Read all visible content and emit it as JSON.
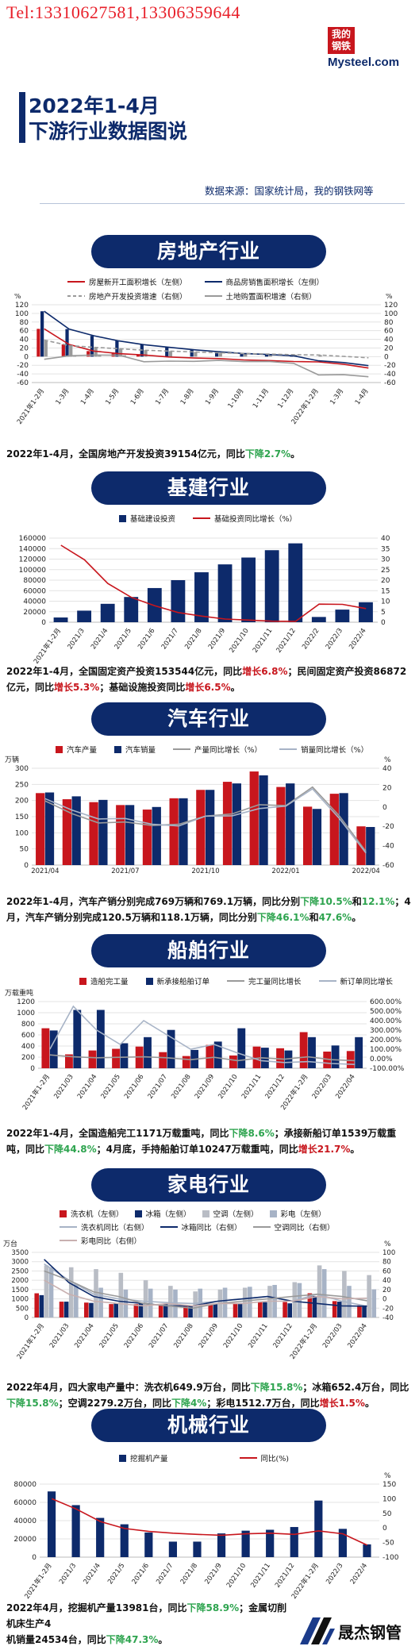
{
  "header": {
    "phone": "Tel:13310627581,13306359644",
    "logo_top": "我的",
    "logo_mid": "钢铁",
    "logo_text": "Mysteel.com",
    "title_line1": "2022年1-4月",
    "title_line2": "下游行业数据图说",
    "source": "数据来源：国家统计局，我的钢铁网等"
  },
  "colors": {
    "navy": "#0d2a6b",
    "red": "#c8161d",
    "green": "#2ea44f",
    "gray": "#9a9a9a",
    "lightblue": "#a7b3c6"
  },
  "sections": {
    "real_estate": {
      "banner": "房地产行业",
      "legend": [
        "房屋新开工面积增长（左侧）",
        "商品房销售面积增长（左侧）",
        "房地产开发投资增速（右侧）",
        "土地购置面积增速（右侧）"
      ],
      "left_unit": "%",
      "right_unit": "%",
      "note": {
        "a": "2022年1-4月，全国房地产开发投资39154亿元，同比",
        "b": "下降2.7%",
        "c": "。"
      }
    },
    "infrastructure": {
      "banner": "基建行业",
      "legend": [
        "基础建设投资",
        "基础投资同比增长（%）"
      ],
      "note": {
        "a": "2022年1-4月，全国固定资产投资153544亿元，同比",
        "b": "增长6.8%",
        "c": "；民间固定资产投资86872亿元，同比",
        "d": "增长5.3%",
        "e": "；基础设施投资同比",
        "f": "增长6.5%",
        "g": "。"
      }
    },
    "auto": {
      "banner": "汽车行业",
      "legend": [
        "汽车产量",
        "汽车销量",
        "产量同比增长（%）",
        "销量同比增长（%）"
      ],
      "left_unit": "万辆",
      "right_unit": "%",
      "note": {
        "a": "2022年1-4月，汽车产销分别完成769万辆和769.1万辆，同比分别",
        "b": "下降10.5%",
        "c": "和",
        "d": "12.1%",
        "e": "；4月，汽车产销分别完成120.5万辆和118.1万辆，同比分别",
        "f": "下降46.1%",
        "g": "和",
        "h": "47.6%",
        "i": "。"
      }
    },
    "ship": {
      "banner": "船舶行业",
      "legend": [
        "造船完工量",
        "新承接船舶订单",
        "完工量同比增长",
        "新订单同比增长"
      ],
      "left_unit": "万载重吨",
      "note": {
        "a": "2022年1-4月，全国造船完工1171万载重吨，同比",
        "b": "下降8.6%",
        "c": "；承接新船订单1539万载重吨，同比",
        "d": "下降44.8%",
        "e": "；4月底，手持船舶订单10247万载重吨，同比",
        "f": "增长21.7%",
        "g": "。"
      }
    },
    "appliance": {
      "banner": "家电行业",
      "legend": [
        "洗衣机（左侧）",
        "冰箱（左侧）",
        "空调（左侧）",
        "彩电（左侧）",
        "洗衣机同比（右侧）",
        "冰箱同比（右侧）",
        "空调同比（右侧）",
        "彩电同比（右侧）"
      ],
      "left_unit": "万台",
      "right_unit": "%",
      "note": {
        "a": "2022年4月，四大家电产量中：洗衣机649.9万台，同比",
        "b": "下降15.8%",
        "c": "；冰箱652.4万台，同比",
        "d": "下降15.8%",
        "e": "；空调2279.2万台，同比",
        "f": "下降4%",
        "g": "；彩电1512.7万台，同比",
        "h": "增长1.5%",
        "i": "。"
      }
    },
    "machinery": {
      "banner": "机械行业",
      "legend": [
        "挖掘机产量",
        "同比(%)"
      ],
      "right_unit": "%",
      "note": {
        "a": "2022年4月，挖掘机产量13981台，同比",
        "b": "下降58.9%",
        "c": "；金属切削机床生产4",
        "d": "机销量24534台，同比",
        "e": "下降47.3%",
        "f": "。"
      }
    }
  },
  "footer": {
    "brand": "晟杰钢管"
  },
  "chart_data": [
    {
      "id": "real_estate",
      "type": "line",
      "x": [
        "2021年1-2月",
        "1-3月",
        "1-4月",
        "1-5月",
        "1-6月",
        "1-7月",
        "1-8月",
        "1-9月",
        "1-10月",
        "1-11月",
        "1-12月",
        "2022年1-2月",
        "1-3月",
        "1-4月"
      ],
      "ylim": [
        -60,
        120
      ],
      "y2lim": [
        -60,
        120
      ],
      "series": [
        {
          "name": "房屋新开工面积增长（左侧）",
          "color": "#c8161d",
          "dash": false,
          "values": [
            64.3,
            28.2,
            12.8,
            6.9,
            3.8,
            -0.9,
            -3.2,
            -4.5,
            -7.7,
            -9.1,
            -11.4,
            -12.2,
            -17.5,
            -26.3
          ]
        },
        {
          "name": "商品房销售面积增长（左侧）",
          "color": "#0d2a6b",
          "dash": false,
          "values": [
            104.9,
            63.8,
            48.1,
            36.3,
            27.7,
            21.5,
            15.9,
            11.3,
            7.3,
            4.8,
            1.9,
            -9.6,
            -13.8,
            -20.9
          ]
        },
        {
          "name": "房地产开发投资增速（右侧）",
          "color": "#9a9a9a",
          "dash": true,
          "values": [
            38.3,
            25.6,
            21.6,
            18.3,
            15.0,
            12.7,
            10.9,
            8.8,
            7.2,
            6.0,
            4.4,
            3.7,
            0.7,
            -2.7
          ]
        },
        {
          "name": "土地购置面积增速（右侧）",
          "color": "#9a9a9a",
          "dash": false,
          "values": [
            -6.2,
            1.9,
            3.8,
            3.2,
            -11.8,
            -10.4,
            -11.0,
            -8.7,
            -11.5,
            -11.2,
            -15.5,
            -42.3,
            -41.8,
            -46.5
          ]
        }
      ]
    },
    {
      "id": "infrastructure",
      "type": "bar",
      "categories": [
        "2021年1-2月",
        "2021/3",
        "2021/4",
        "2021/5",
        "2021/6",
        "2021/7",
        "2021/8",
        "2021/9",
        "2021/10",
        "2021/11",
        "2021/12",
        "2022/2",
        "2022/3",
        "2022/4"
      ],
      "ylim": [
        0,
        160000
      ],
      "y2lim": [
        0,
        40
      ],
      "series": [
        {
          "name": "基础建设投资",
          "color": "#0d2a6b",
          "values": [
            9000,
            22000,
            35000,
            48000,
            65000,
            80000,
            95000,
            110000,
            123000,
            137000,
            150000,
            10000,
            24000,
            38000
          ]
        },
        {
          "name": "基础投资同比增长（%）",
          "color": "#c8161d",
          "type": "line",
          "values": [
            36.6,
            29.7,
            18.4,
            11.8,
            7.8,
            4.6,
            2.9,
            1.5,
            1.0,
            0.5,
            0.4,
            8.6,
            8.5,
            6.5
          ]
        }
      ]
    },
    {
      "id": "auto",
      "type": "bar",
      "categories": [
        "2021/04",
        "2021/05",
        "2021/06",
        "2021/07",
        "2021/08",
        "2021/09",
        "2021/10",
        "2021/11",
        "2021/12",
        "2022/01",
        "2022/02",
        "2022/03",
        "2022/04"
      ],
      "x_tick_labels": [
        "2021/04",
        "2021/07",
        "2021/10",
        "2022/01",
        "2022/04"
      ],
      "ylim": [
        0,
        300
      ],
      "y2lim": [
        -60,
        40
      ],
      "series": [
        {
          "name": "汽车产量",
          "color": "#c8161d",
          "values": [
            223,
            204,
            195,
            186,
            172,
            207,
            233,
            258,
            290,
            242,
            181,
            221,
            120
          ]
        },
        {
          "name": "汽车销量",
          "color": "#0d2a6b",
          "values": [
            225,
            213,
            202,
            186,
            180,
            207,
            233,
            253,
            278,
            253,
            174,
            223,
            118
          ]
        },
        {
          "name": "产量同比增长（%）",
          "color": "#9a9a9a",
          "type": "line",
          "values": [
            6.3,
            -6.8,
            -16.5,
            -15.5,
            -19.1,
            -17.9,
            -9.4,
            -7.1,
            2.4,
            1.4,
            20.6,
            -9.1,
            -46.1
          ]
        },
        {
          "name": "销量同比增长（%）",
          "color": "#a7b3c6",
          "type": "line",
          "values": [
            8.6,
            -3.1,
            -12.4,
            -11.9,
            -17.8,
            -19.6,
            -9.4,
            -9.1,
            -1.6,
            0.9,
            18.7,
            -11.7,
            -47.6
          ]
        }
      ]
    },
    {
      "id": "ship",
      "type": "bar",
      "categories": [
        "2021年1-2月",
        "2021/03",
        "2021/04",
        "2021/05",
        "2021/06",
        "2021/07",
        "2021/08",
        "2021/09",
        "2021/10",
        "2021/11",
        "2021/12",
        "2022年1-2月",
        "2022/03",
        "2022/04"
      ],
      "ylim": [
        0,
        1200
      ],
      "y2lim": [
        -100,
        600
      ],
      "series": [
        {
          "name": "造船完工量",
          "color": "#c8161d",
          "values": [
            720,
            250,
            320,
            350,
            390,
            290,
            220,
            420,
            230,
            390,
            360,
            650,
            300,
            310
          ]
        },
        {
          "name": "新承接船舶订单",
          "color": "#0d2a6b",
          "values": [
            680,
            1050,
            1050,
            450,
            560,
            690,
            330,
            480,
            720,
            370,
            320,
            560,
            410,
            560
          ]
        },
        {
          "name": "完工量同比增长",
          "color": "#9a9a9a",
          "type": "line",
          "values": [
            40,
            20,
            10,
            15,
            20,
            10,
            -10,
            15,
            -20,
            10,
            -5,
            20,
            -10,
            -20
          ]
        },
        {
          "name": "新订单同比增长",
          "color": "#a7b3c6",
          "type": "line",
          "values": [
            100,
            550,
            300,
            150,
            400,
            250,
            100,
            150,
            60,
            -20,
            -40,
            -30,
            -50,
            -60
          ]
        }
      ]
    },
    {
      "id": "appliance",
      "type": "bar",
      "categories": [
        "2021年1-2月",
        "2021/03",
        "2021/04",
        "2021/05",
        "2021/06",
        "2021/07",
        "2021/08",
        "2021/09",
        "2021/10",
        "2021/11",
        "2021/12",
        "2022年1-2月",
        "2022/03",
        "2022/04"
      ],
      "ylim": [
        0,
        3500
      ],
      "y2lim": [
        -40,
        100
      ],
      "series": [
        {
          "name": "洗衣机（左侧）",
          "color": "#c8161d",
          "values": [
            1300,
            850,
            800,
            720,
            720,
            700,
            680,
            720,
            780,
            850,
            830,
            1300,
            880,
            650
          ]
        },
        {
          "name": "冰箱（左侧）",
          "color": "#0d2a6b",
          "values": [
            1200,
            850,
            780,
            760,
            800,
            720,
            640,
            730,
            780,
            820,
            760,
            1150,
            850,
            652
          ]
        },
        {
          "name": "空调（左侧）",
          "color": "#b9bdc5",
          "values": [
            2800,
            2700,
            2600,
            2400,
            2000,
            1700,
            1400,
            1500,
            1600,
            1700,
            1900,
            2800,
            2500,
            2279
          ]
        },
        {
          "name": "彩电（左侧）",
          "color": "#a7b3c6",
          "values": [
            2700,
            1800,
            1600,
            1500,
            1550,
            1500,
            1550,
            1600,
            1650,
            1750,
            1850,
            2600,
            1700,
            1513
          ]
        },
        {
          "name": "洗衣机同比（右侧）",
          "color": "#a7b3c6",
          "type": "line",
          "values": [
            75,
            40,
            10,
            0,
            -5,
            -8,
            -10,
            -5,
            0,
            5,
            -5,
            10,
            -5,
            -15.8
          ]
        },
        {
          "name": "冰箱同比（右侧）",
          "color": "#0d2a6b",
          "type": "line",
          "values": [
            85,
            35,
            5,
            -5,
            -10,
            -15,
            -15,
            -5,
            0,
            5,
            -5,
            -10,
            -15,
            -15.8
          ]
        },
        {
          "name": "空调同比（右侧）",
          "color": "#9a9a9a",
          "type": "line",
          "values": [
            60,
            40,
            15,
            5,
            -10,
            -15,
            -20,
            -10,
            -5,
            0,
            5,
            10,
            5,
            -4
          ]
        },
        {
          "name": "彩电同比（右侧）",
          "color": "#c8b0b0",
          "type": "line",
          "values": [
            40,
            10,
            -5,
            -10,
            -15,
            -10,
            -15,
            -10,
            -10,
            -5,
            -5,
            5,
            0,
            1.5
          ]
        }
      ]
    },
    {
      "id": "machinery",
      "type": "bar",
      "categories": [
        "2021年1-2月",
        "2021/3",
        "2021/4",
        "2021/5",
        "2021/6",
        "2021/7",
        "2021/8",
        "2021/9",
        "2021/10",
        "2021/11",
        "2021/12",
        "2022年1-2月",
        "2022/3",
        "2022/4"
      ],
      "ylim": [
        0,
        80000
      ],
      "y2lim": [
        -100,
        150
      ],
      "series": [
        {
          "name": "挖掘机产量",
          "color": "#0d2a6b",
          "values": [
            72000,
            57000,
            43000,
            36000,
            27000,
            17000,
            17000,
            26000,
            29000,
            30000,
            33000,
            62000,
            31000,
            13981
          ]
        },
        {
          "name": "同比(%)",
          "color": "#c8161d",
          "type": "line",
          "values": [
            100,
            65,
            22,
            -2,
            -12,
            -18,
            -22,
            -25,
            -20,
            -18,
            -22,
            -10,
            -20,
            -58.9
          ]
        }
      ]
    }
  ]
}
